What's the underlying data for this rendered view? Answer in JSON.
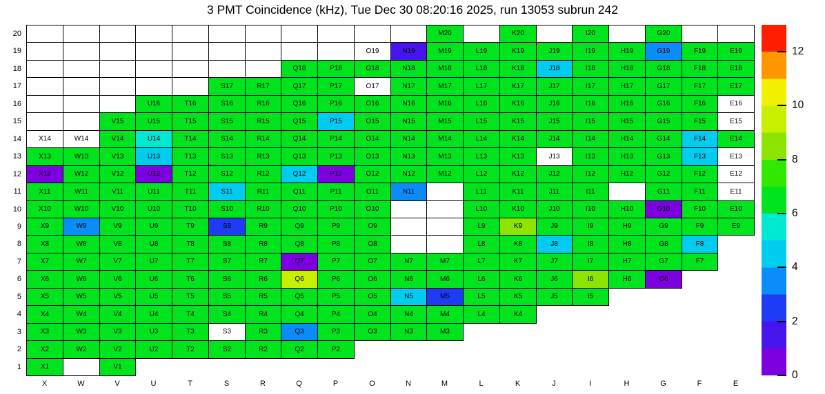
{
  "chart_data": {
    "type": "heatmap",
    "title": "3 PMT Coincidence (kHz), Tue Dec 30 08:20:16 2025, run 13053 subrun 242",
    "units": "kHz",
    "x_categories": [
      "X",
      "W",
      "V",
      "U",
      "T",
      "S",
      "R",
      "Q",
      "P",
      "O",
      "N",
      "M",
      "L",
      "K",
      "J",
      "I",
      "H",
      "G",
      "F",
      "E"
    ],
    "y_categories": [
      20,
      19,
      18,
      17,
      16,
      15,
      14,
      13,
      12,
      11,
      10,
      9,
      8,
      7,
      6,
      5,
      4,
      3,
      2,
      1
    ],
    "cell_encoding": {
      "null": "no cell drawn",
      "b": "bordered empty white cell",
      "w": "white cell with label (no color value)",
      "number": "estimated rate in kHz mapped to palette band",
      "label": "column letter + row number (e.g. M20)"
    },
    "cells": [
      [
        "b",
        "b",
        "b",
        "b",
        "b",
        "b",
        "b",
        "b",
        "b",
        "b",
        "b",
        6.5,
        "b",
        6.5,
        "b",
        6.5,
        "b",
        6.5,
        "b",
        "b"
      ],
      [
        "b",
        "b",
        "b",
        "b",
        "b",
        "b",
        "b",
        "b",
        "b",
        "w",
        1.6,
        6.5,
        6.5,
        6.5,
        6.5,
        6.5,
        6.5,
        3.6,
        6.5,
        6.5
      ],
      [
        "b",
        "b",
        "b",
        "b",
        "b",
        "b",
        "b",
        6.5,
        6.5,
        6.5,
        6.5,
        6.5,
        6.5,
        6.5,
        4.6,
        6.5,
        6.5,
        6.5,
        6.5,
        6.5
      ],
      [
        "b",
        "b",
        "b",
        "b",
        "b",
        6.5,
        6.5,
        6.5,
        6.5,
        "w",
        6.5,
        6.5,
        6.5,
        6.5,
        6.5,
        6.5,
        6.5,
        6.5,
        6.5,
        6.5
      ],
      [
        "b",
        "b",
        "b",
        6.5,
        6.5,
        6.5,
        6.5,
        6.5,
        6.5,
        6.5,
        6.5,
        6.5,
        6.5,
        6.5,
        6.5,
        6.5,
        6.5,
        6.5,
        6.5,
        "w"
      ],
      [
        "b",
        "b",
        6.5,
        6.5,
        6.5,
        6.5,
        6.5,
        6.5,
        4.6,
        6.5,
        6.5,
        6.5,
        6.5,
        6.5,
        6.5,
        6.5,
        6.5,
        6.5,
        6.5,
        "w"
      ],
      [
        "w",
        "w",
        6.5,
        5.5,
        6.5,
        6.5,
        6.5,
        6.5,
        6.5,
        6.5,
        6.5,
        6.5,
        6.5,
        6.5,
        6.5,
        6.5,
        6.5,
        6.5,
        4.6,
        6.5
      ],
      [
        6.5,
        6.5,
        6.5,
        4.6,
        6.5,
        6.5,
        6.5,
        6.5,
        6.5,
        6.5,
        6.5,
        6.5,
        6.5,
        6.5,
        "w",
        6.5,
        6.5,
        6.5,
        4.6,
        "w"
      ],
      [
        0.6,
        6.5,
        6.5,
        0.6,
        6.5,
        6.5,
        6.5,
        4.6,
        0.6,
        6.5,
        6.5,
        6.5,
        6.5,
        6.5,
        6.5,
        6.5,
        6.5,
        6.5,
        6.5,
        "w"
      ],
      [
        6.5,
        6.5,
        6.5,
        6.5,
        6.5,
        4.6,
        6.5,
        6.5,
        6.5,
        6.5,
        3.3,
        "b",
        6.5,
        6.5,
        6.5,
        6.5,
        "b",
        6.5,
        6.5,
        "w"
      ],
      [
        6.5,
        6.5,
        6.5,
        6.5,
        6.5,
        6.5,
        6.5,
        6.5,
        6.5,
        6.5,
        "b",
        "b",
        6.5,
        6.5,
        6.5,
        6.5,
        6.5,
        0.6,
        6.5,
        6.5
      ],
      [
        6.5,
        3.5,
        6.5,
        6.5,
        6.5,
        2.9,
        6.5,
        6.5,
        6.5,
        6.5,
        "b",
        "b",
        6.5,
        8.6,
        6.5,
        6.5,
        6.5,
        6.5,
        6.5,
        6.5
      ],
      [
        6.5,
        6.5,
        6.5,
        6.5,
        6.5,
        6.5,
        6.5,
        6.5,
        6.5,
        6.5,
        "b",
        "b",
        6.5,
        6.5,
        4.6,
        6.5,
        6.5,
        6.5,
        4.6,
        null
      ],
      [
        6.5,
        6.5,
        6.5,
        6.5,
        6.5,
        6.5,
        6.5,
        0.6,
        6.5,
        6.5,
        6.5,
        6.5,
        6.5,
        6.5,
        6.5,
        6.5,
        6.5,
        6.5,
        6.5,
        null
      ],
      [
        6.5,
        6.5,
        6.5,
        6.5,
        6.5,
        6.5,
        6.5,
        9.4,
        6.5,
        6.5,
        6.5,
        6.5,
        6.5,
        6.5,
        6.5,
        8.5,
        6.5,
        0.6,
        null,
        null
      ],
      [
        6.5,
        6.5,
        6.5,
        6.5,
        6.5,
        6.5,
        6.5,
        6.5,
        6.5,
        6.5,
        4.4,
        2.4,
        6.5,
        6.5,
        6.5,
        6.5,
        null,
        null,
        null,
        null
      ],
      [
        6.5,
        6.5,
        6.5,
        6.5,
        6.5,
        6.5,
        6.5,
        6.5,
        6.5,
        6.5,
        6.5,
        6.5,
        6.5,
        6.5,
        null,
        null,
        null,
        null,
        null,
        null
      ],
      [
        6.5,
        6.5,
        6.5,
        6.5,
        6.5,
        "w",
        6.5,
        3.4,
        6.5,
        6.5,
        6.5,
        6.5,
        null,
        null,
        null,
        null,
        null,
        null,
        null,
        null
      ],
      [
        6.5,
        6.5,
        6.5,
        6.5,
        6.5,
        6.5,
        6.5,
        6.5,
        6.5,
        null,
        null,
        null,
        null,
        null,
        null,
        null,
        null,
        null,
        null,
        null
      ],
      [
        6.5,
        "b",
        6.5,
        null,
        null,
        null,
        null,
        null,
        null,
        null,
        null,
        null,
        null,
        null,
        null,
        null,
        null,
        null,
        null,
        null
      ]
    ],
    "palette": {
      "vmax": 13,
      "bands": [
        "#7d00e0",
        "#4614ec",
        "#1e3cf5",
        "#0a8cfa",
        "#00ccf0",
        "#00e8d2",
        "#00e41e",
        "#32e800",
        "#8ce400",
        "#c8ee00",
        "#f0f000",
        "#ff9600",
        "#ff1e00"
      ]
    },
    "colorbar_ticks": [
      0,
      2,
      4,
      6,
      8,
      10,
      12
    ],
    "legend_position": "right",
    "grid": "cell borders black, empty regions white"
  }
}
